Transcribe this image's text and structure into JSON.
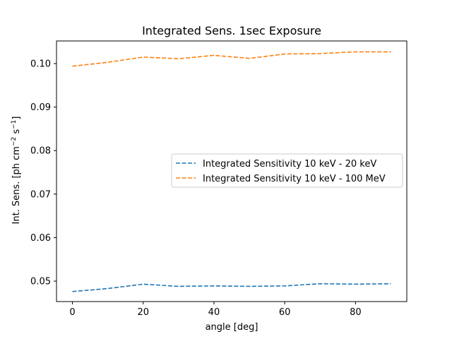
{
  "chart_data": {
    "type": "line",
    "title": "Integrated Sens. 1sec Exposure",
    "xlabel": "angle [deg]",
    "ylabel_main": "Int. Sens. [ph cm",
    "ylabel_sup1": "−2",
    "ylabel_mid": " s",
    "ylabel_sup2": "−1",
    "ylabel_end": "]",
    "xlim": [
      -4.5,
      94.5
    ],
    "ylim": [
      0.0453,
      0.1052
    ],
    "xticks": [
      0,
      20,
      40,
      60,
      80
    ],
    "xtick_labels": [
      "0",
      "20",
      "40",
      "60",
      "80"
    ],
    "yticks": [
      0.05,
      0.06,
      0.07,
      0.08,
      0.09,
      0.1
    ],
    "ytick_labels": [
      "0.05",
      "0.06",
      "0.07",
      "0.08",
      "0.09",
      "0.10"
    ],
    "grid": false,
    "legend_position": "center-right",
    "x": [
      0,
      10,
      20,
      30,
      40,
      50,
      60,
      70,
      80,
      90
    ],
    "series": [
      {
        "name": "Integrated Sensitivity 10 keV - 20 keV",
        "color": "#1f77b4",
        "values": [
          0.0476,
          0.0483,
          0.0493,
          0.0488,
          0.0489,
          0.0488,
          0.0489,
          0.0494,
          0.0493,
          0.0494
        ]
      },
      {
        "name": "Integrated Sensitivity 10 keV - 100 MeV",
        "color": "#ff7f0e",
        "values": [
          0.0994,
          0.1003,
          0.1015,
          0.1011,
          0.1019,
          0.1012,
          0.1022,
          0.1023,
          0.1027,
          0.1027
        ]
      }
    ]
  }
}
